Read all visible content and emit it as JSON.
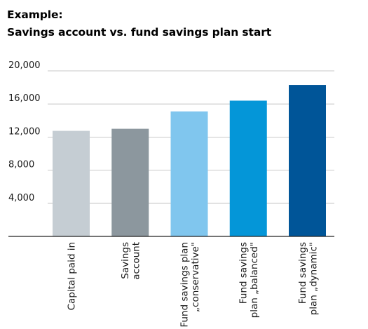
{
  "heading": {
    "line1": "Example:",
    "line2": "Savings account vs. fund savings plan start"
  },
  "chart_data": {
    "type": "bar",
    "title": "Savings account vs. fund savings plan start",
    "ylim": [
      0,
      20000
    ],
    "yticks": [
      "4,000",
      "8,000",
      "12,000",
      "16,000",
      "20,000"
    ],
    "ytick_values": [
      4000,
      8000,
      12000,
      16000,
      20000
    ],
    "grid": true,
    "categories": [
      [
        "Capital paid in"
      ],
      [
        "Savings",
        "account"
      ],
      [
        "Fund savings plan",
        "„conservative\""
      ],
      [
        "Fund savings",
        "plan „balanced\""
      ],
      [
        "Fund savings",
        "plan „dynamic\""
      ]
    ],
    "values": [
      12750,
      13000,
      15100,
      16400,
      18300
    ],
    "colors": [
      "#c5cdd3",
      "#8c979e",
      "#80c6ee",
      "#0496d8",
      "#005598"
    ]
  }
}
